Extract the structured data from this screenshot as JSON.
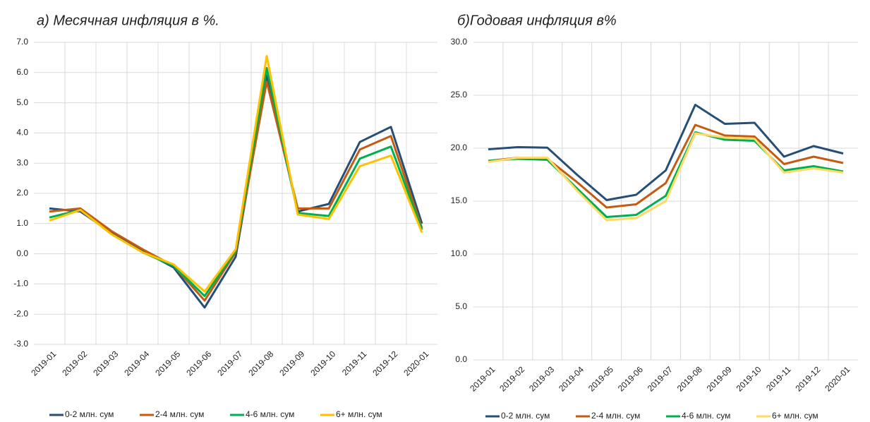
{
  "chart_data": [
    {
      "type": "line",
      "title": "а) Месячная инфляция в %.",
      "categories": [
        "2019-01",
        "2019-02",
        "2019-03",
        "2019-04",
        "2019-05",
        "2019-06",
        "2019-07",
        "2019-08",
        "2019-09",
        "2019-10",
        "2019-11",
        "2019-12",
        "2020-01"
      ],
      "series": [
        {
          "name": "0-2 млн. сум",
          "color": "#264f78",
          "values": [
            1.5,
            1.4,
            0.7,
            0.1,
            -0.45,
            -1.78,
            -0.1,
            5.9,
            1.4,
            1.65,
            3.7,
            4.2,
            1.0
          ]
        },
        {
          "name": "2-4 млн. сум",
          "color": "#c55a11",
          "values": [
            1.4,
            1.5,
            0.75,
            0.15,
            -0.4,
            -1.55,
            0.05,
            5.7,
            1.5,
            1.5,
            3.45,
            3.9,
            0.85
          ]
        },
        {
          "name": "4-6 млн. сум",
          "color": "#00b050",
          "values": [
            1.2,
            1.45,
            0.65,
            0.05,
            -0.4,
            -1.4,
            0.1,
            6.15,
            1.35,
            1.25,
            3.15,
            3.55,
            0.8
          ]
        },
        {
          "name": "6+ млн. сум",
          "color": "#ffc000",
          "values": [
            1.1,
            1.45,
            0.65,
            0.05,
            -0.35,
            -1.25,
            0.15,
            6.55,
            1.3,
            1.15,
            2.9,
            3.25,
            0.7
          ]
        }
      ],
      "ylim": [
        -3,
        7
      ],
      "yticks": [
        {
          "value": -3,
          "label": "-3.0"
        },
        {
          "value": -2,
          "label": "-2.0"
        },
        {
          "value": -1,
          "label": "-1.0"
        },
        {
          "value": 0,
          "label": "0.0"
        },
        {
          "value": 1,
          "label": "1.0"
        },
        {
          "value": 2,
          "label": "2.0"
        },
        {
          "value": 3,
          "label": "3.0"
        },
        {
          "value": 4,
          "label": "4.0"
        },
        {
          "value": 5,
          "label": "5.0"
        },
        {
          "value": 6,
          "label": "6.0"
        },
        {
          "value": 7,
          "label": "7.0"
        }
      ],
      "grid": true
    },
    {
      "type": "line",
      "title": "б)Годовая инфляция в%",
      "categories": [
        "2019-01",
        "2019-02",
        "2019-03",
        "2019-04",
        "2019-05",
        "2019-06",
        "2019-07",
        "2019-08",
        "2019-09",
        "2019-10",
        "2019-11",
        "2019-12",
        "2020-01"
      ],
      "series": [
        {
          "name": "0-2 млн. сум",
          "color": "#264f78",
          "values": [
            19.9,
            20.1,
            20.05,
            17.5,
            15.1,
            15.6,
            17.9,
            24.1,
            22.3,
            22.4,
            19.2,
            20.2,
            19.5
          ]
        },
        {
          "name": "2-4 млн. сум",
          "color": "#c55a11",
          "values": [
            18.8,
            19.1,
            19.0,
            16.8,
            14.4,
            14.7,
            16.7,
            22.2,
            21.2,
            21.1,
            18.5,
            19.2,
            18.6
          ]
        },
        {
          "name": "4-6 млн. сум",
          "color": "#00b050",
          "values": [
            18.8,
            19.0,
            18.9,
            16.2,
            13.5,
            13.7,
            15.5,
            21.5,
            20.8,
            20.7,
            17.9,
            18.3,
            17.8
          ]
        },
        {
          "name": "6+ млн. сум",
          "color": "#ffd966",
          "values": [
            18.7,
            19.1,
            19.1,
            16.0,
            13.2,
            13.4,
            15.0,
            21.4,
            21.0,
            20.9,
            17.7,
            18.1,
            17.7
          ]
        }
      ],
      "ylim": [
        0,
        30
      ],
      "yticks": [
        {
          "value": 0,
          "label": "0.0"
        },
        {
          "value": 5,
          "label": "5.0"
        },
        {
          "value": 10,
          "label": "10.0"
        },
        {
          "value": 15,
          "label": "15.0"
        },
        {
          "value": 20,
          "label": "20.0"
        },
        {
          "value": 25,
          "label": "25.0"
        },
        {
          "value": 30,
          "label": "30.0"
        }
      ],
      "grid": true
    }
  ]
}
